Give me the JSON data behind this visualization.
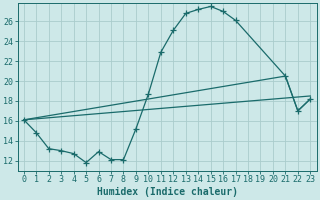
{
  "xlabel": "Humidex (Indice chaleur)",
  "bg_color": "#cde8e8",
  "grid_color": "#aacccc",
  "line_color": "#1a6b6b",
  "xlim": [
    -0.5,
    23.5
  ],
  "ylim": [
    11.0,
    27.8
  ],
  "xticks": [
    0,
    1,
    2,
    3,
    4,
    5,
    6,
    7,
    8,
    9,
    10,
    11,
    12,
    13,
    14,
    15,
    16,
    17,
    18,
    19,
    20,
    21,
    22,
    23
  ],
  "yticks": [
    12,
    14,
    16,
    18,
    20,
    22,
    24,
    26
  ],
  "series1_x": [
    0,
    1,
    2,
    3,
    4,
    5,
    6,
    7,
    8,
    9,
    10,
    11,
    12,
    13,
    14,
    15,
    16,
    17,
    21,
    22,
    23
  ],
  "series1_y": [
    16.1,
    14.8,
    13.2,
    13.0,
    12.7,
    11.8,
    12.9,
    12.1,
    12.1,
    15.2,
    18.7,
    22.9,
    25.1,
    26.8,
    27.2,
    27.5,
    27.0,
    26.1,
    20.5,
    17.0,
    18.2
  ],
  "series2_x": [
    0,
    23
  ],
  "series2_y": [
    16.1,
    18.5
  ],
  "series3_x": [
    0,
    21,
    22,
    23
  ],
  "series3_y": [
    16.1,
    20.5,
    17.0,
    18.2
  ],
  "marker": "+",
  "markersize": 4,
  "linewidth": 0.9,
  "xlabel_fontsize": 7,
  "tick_fontsize": 6
}
